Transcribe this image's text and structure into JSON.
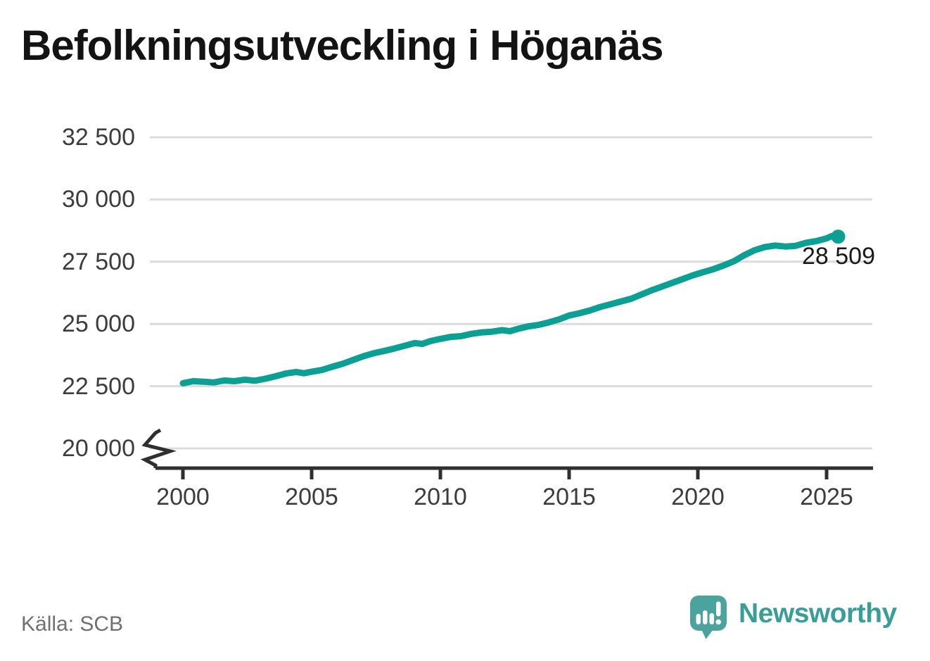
{
  "page": {
    "title": "Befolkningsutveckling i Höganäs",
    "source_label": "Källa: SCB",
    "brand": {
      "name": "Newsworthy",
      "icon": "newsworthy-speech-bubble-bar-chart-icon",
      "icon_color": "#4aa39c",
      "text_color": "#3a9d97"
    }
  },
  "chart_data": {
    "type": "line",
    "title": "Befolkningsutveckling i Höganäs",
    "xlabel": "",
    "ylabel": "",
    "grid": "horizontal",
    "legend": "none",
    "y_axis_break": true,
    "xlim": [
      1998.7,
      2027.3
    ],
    "ylim": [
      20000,
      33300
    ],
    "x_ticks": [
      {
        "value": 2000,
        "label": "2000"
      },
      {
        "value": 2005,
        "label": "2005"
      },
      {
        "value": 2010,
        "label": "2010"
      },
      {
        "value": 2015,
        "label": "2015"
      },
      {
        "value": 2020,
        "label": "2020"
      },
      {
        "value": 2025,
        "label": "2025"
      }
    ],
    "y_ticks": [
      {
        "value": 20000,
        "label": "20 000"
      },
      {
        "value": 22500,
        "label": "22 500"
      },
      {
        "value": 25000,
        "label": "25 000"
      },
      {
        "value": 27500,
        "label": "27 500"
      },
      {
        "value": 30000,
        "label": "30 000"
      },
      {
        "value": 32500,
        "label": "32 500"
      }
    ],
    "series": [
      {
        "name": "Befolkning i Höganäs",
        "color": "#0ba093",
        "end_marker": true,
        "points": [
          [
            2000.0,
            22620
          ],
          [
            2000.4,
            22700
          ],
          [
            2000.8,
            22680
          ],
          [
            2001.2,
            22650
          ],
          [
            2001.6,
            22730
          ],
          [
            2002.0,
            22700
          ],
          [
            2002.4,
            22760
          ],
          [
            2002.8,
            22720
          ],
          [
            2003.2,
            22800
          ],
          [
            2003.6,
            22900
          ],
          [
            2004.0,
            23010
          ],
          [
            2004.4,
            23070
          ],
          [
            2004.7,
            23020
          ],
          [
            2005.0,
            23080
          ],
          [
            2005.4,
            23150
          ],
          [
            2005.8,
            23280
          ],
          [
            2006.2,
            23400
          ],
          [
            2006.6,
            23550
          ],
          [
            2007.0,
            23700
          ],
          [
            2007.4,
            23820
          ],
          [
            2007.8,
            23910
          ],
          [
            2008.2,
            24010
          ],
          [
            2008.6,
            24120
          ],
          [
            2009.0,
            24230
          ],
          [
            2009.3,
            24200
          ],
          [
            2009.6,
            24310
          ],
          [
            2010.0,
            24400
          ],
          [
            2010.4,
            24480
          ],
          [
            2010.8,
            24510
          ],
          [
            2011.2,
            24600
          ],
          [
            2011.6,
            24660
          ],
          [
            2012.0,
            24690
          ],
          [
            2012.4,
            24750
          ],
          [
            2012.7,
            24710
          ],
          [
            2013.0,
            24800
          ],
          [
            2013.4,
            24900
          ],
          [
            2013.8,
            24960
          ],
          [
            2014.2,
            25060
          ],
          [
            2014.6,
            25180
          ],
          [
            2015.0,
            25340
          ],
          [
            2015.4,
            25430
          ],
          [
            2015.8,
            25540
          ],
          [
            2016.2,
            25680
          ],
          [
            2016.6,
            25790
          ],
          [
            2017.0,
            25900
          ],
          [
            2017.4,
            26010
          ],
          [
            2017.8,
            26180
          ],
          [
            2018.2,
            26350
          ],
          [
            2018.6,
            26500
          ],
          [
            2019.0,
            26650
          ],
          [
            2019.4,
            26800
          ],
          [
            2019.8,
            26950
          ],
          [
            2020.2,
            27080
          ],
          [
            2020.6,
            27200
          ],
          [
            2021.0,
            27350
          ],
          [
            2021.4,
            27520
          ],
          [
            2021.8,
            27760
          ],
          [
            2022.2,
            27960
          ],
          [
            2022.6,
            28090
          ],
          [
            2023.0,
            28150
          ],
          [
            2023.4,
            28110
          ],
          [
            2023.8,
            28140
          ],
          [
            2024.2,
            28260
          ],
          [
            2024.6,
            28330
          ],
          [
            2025.0,
            28440
          ],
          [
            2025.2,
            28530
          ],
          [
            2025.45,
            28509
          ]
        ]
      }
    ],
    "end_label": "28 509",
    "end_value": 28509,
    "colors": {
      "line": "#0ba093",
      "grid": "#dcdcdc",
      "axis": "#2f2f2f",
      "tick_text": "#3c3c3c",
      "title_text": "#131313",
      "annotation_text": "#1a1a1a",
      "source_text": "#707070"
    }
  }
}
